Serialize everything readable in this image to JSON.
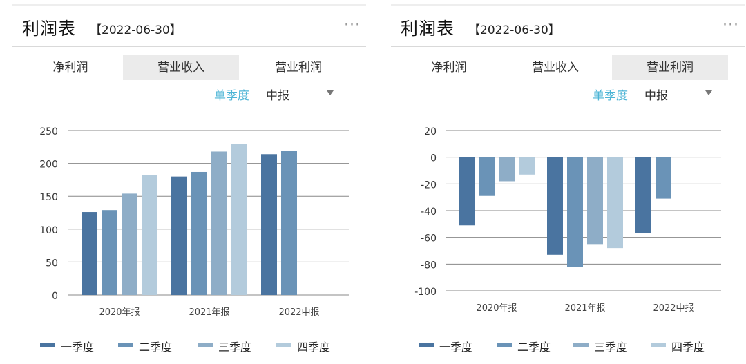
{
  "legend": [
    "一季度",
    "二季度",
    "三季度",
    "四季度"
  ],
  "colors": {
    "q1": "#4a74a0",
    "q2": "#6a93b7",
    "q3": "#8eadc7",
    "q4": "#b3cbdc",
    "accent": "#4db5d6",
    "grid": "#888888",
    "active_tab_bg": "#ebebeb"
  },
  "panels": [
    {
      "title": "利润表",
      "date": "【2022-06-30】",
      "more_icon": "more-dots-icon",
      "tabs": [
        "净利润",
        "营业收入",
        "营业利润"
      ],
      "active_tab": 1,
      "period_label": "单季度",
      "period_value": "中报"
    },
    {
      "title": "利润表",
      "date": "【2022-06-30】",
      "more_icon": "more-dots-icon",
      "tabs": [
        "净利润",
        "营业收入",
        "营业利润"
      ],
      "active_tab": 2,
      "period_label": "单季度",
      "period_value": "中报"
    }
  ],
  "chart_data": [
    {
      "type": "bar",
      "title": "",
      "xlabel": "",
      "ylabel": "",
      "categories": [
        "2020年报",
        "2021年报",
        "2022中报"
      ],
      "series": [
        {
          "name": "一季度",
          "values": [
            126,
            180,
            214
          ]
        },
        {
          "name": "二季度",
          "values": [
            129,
            187,
            219
          ]
        },
        {
          "name": "三季度",
          "values": [
            154,
            218,
            null
          ]
        },
        {
          "name": "四季度",
          "values": [
            182,
            230,
            null
          ]
        }
      ],
      "ylim": [
        0,
        250
      ],
      "yticks": [
        0,
        50,
        100,
        150,
        200,
        250
      ],
      "grid": true,
      "legend_position": "bottom"
    },
    {
      "type": "bar",
      "title": "",
      "xlabel": "",
      "ylabel": "",
      "categories": [
        "2020年报",
        "2021年报",
        "2022中报"
      ],
      "series": [
        {
          "name": "一季度",
          "values": [
            -51,
            -73,
            -57
          ]
        },
        {
          "name": "二季度",
          "values": [
            -29,
            -82,
            -31
          ]
        },
        {
          "name": "三季度",
          "values": [
            -18,
            -65,
            null
          ]
        },
        {
          "name": "四季度",
          "values": [
            -13,
            -68,
            null
          ]
        }
      ],
      "ylim": [
        -100,
        20
      ],
      "yticks": [
        -100,
        -80,
        -60,
        -40,
        -20,
        0,
        20
      ],
      "grid": true,
      "legend_position": "bottom"
    }
  ]
}
